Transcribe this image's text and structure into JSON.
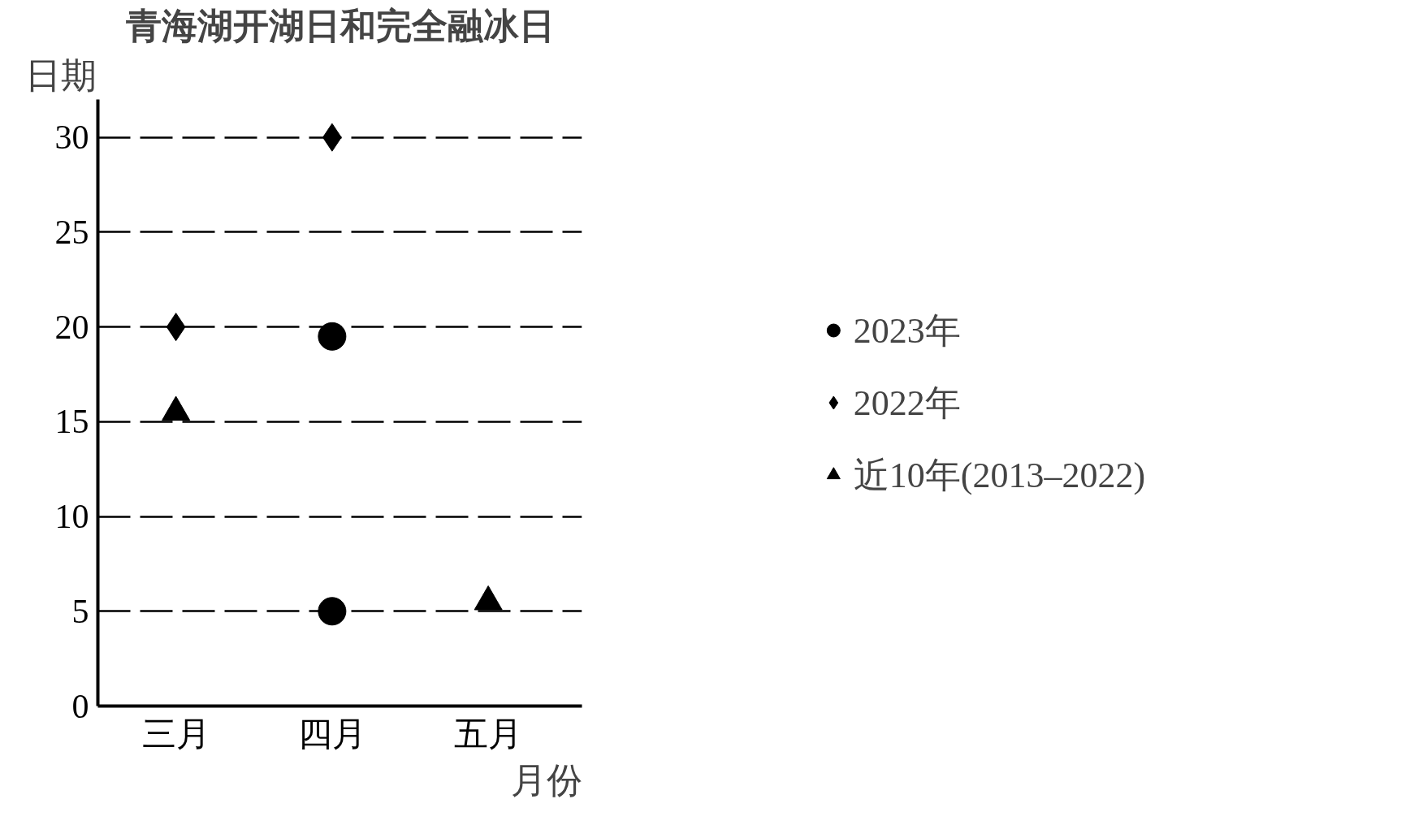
{
  "chart_data": {
    "type": "scatter",
    "title": "青海湖开湖日和完全融冰日",
    "xlabel": "月份",
    "ylabel": "日期",
    "categories": [
      "三月",
      "四月",
      "五月"
    ],
    "series": [
      {
        "name": "2023年",
        "color": "#000000",
        "marker": "circle",
        "x": [
          "四月",
          "四月"
        ],
        "values": [
          5,
          19.5
        ]
      },
      {
        "name": "2022年",
        "color": "#000000",
        "marker": "diamond",
        "x": [
          "三月",
          "四月"
        ],
        "values": [
          20,
          30
        ]
      },
      {
        "name": "近10年(2013–2022)",
        "color": "#000000",
        "marker": "triangle",
        "x": [
          "三月",
          "五月"
        ],
        "values": [
          15.5,
          5.5
        ]
      }
    ],
    "ylim": [
      0,
      32
    ],
    "yticks": [
      0,
      5,
      10,
      15,
      20,
      25,
      30
    ],
    "grid": "y",
    "line_style": "dashed",
    "legend": "right"
  }
}
